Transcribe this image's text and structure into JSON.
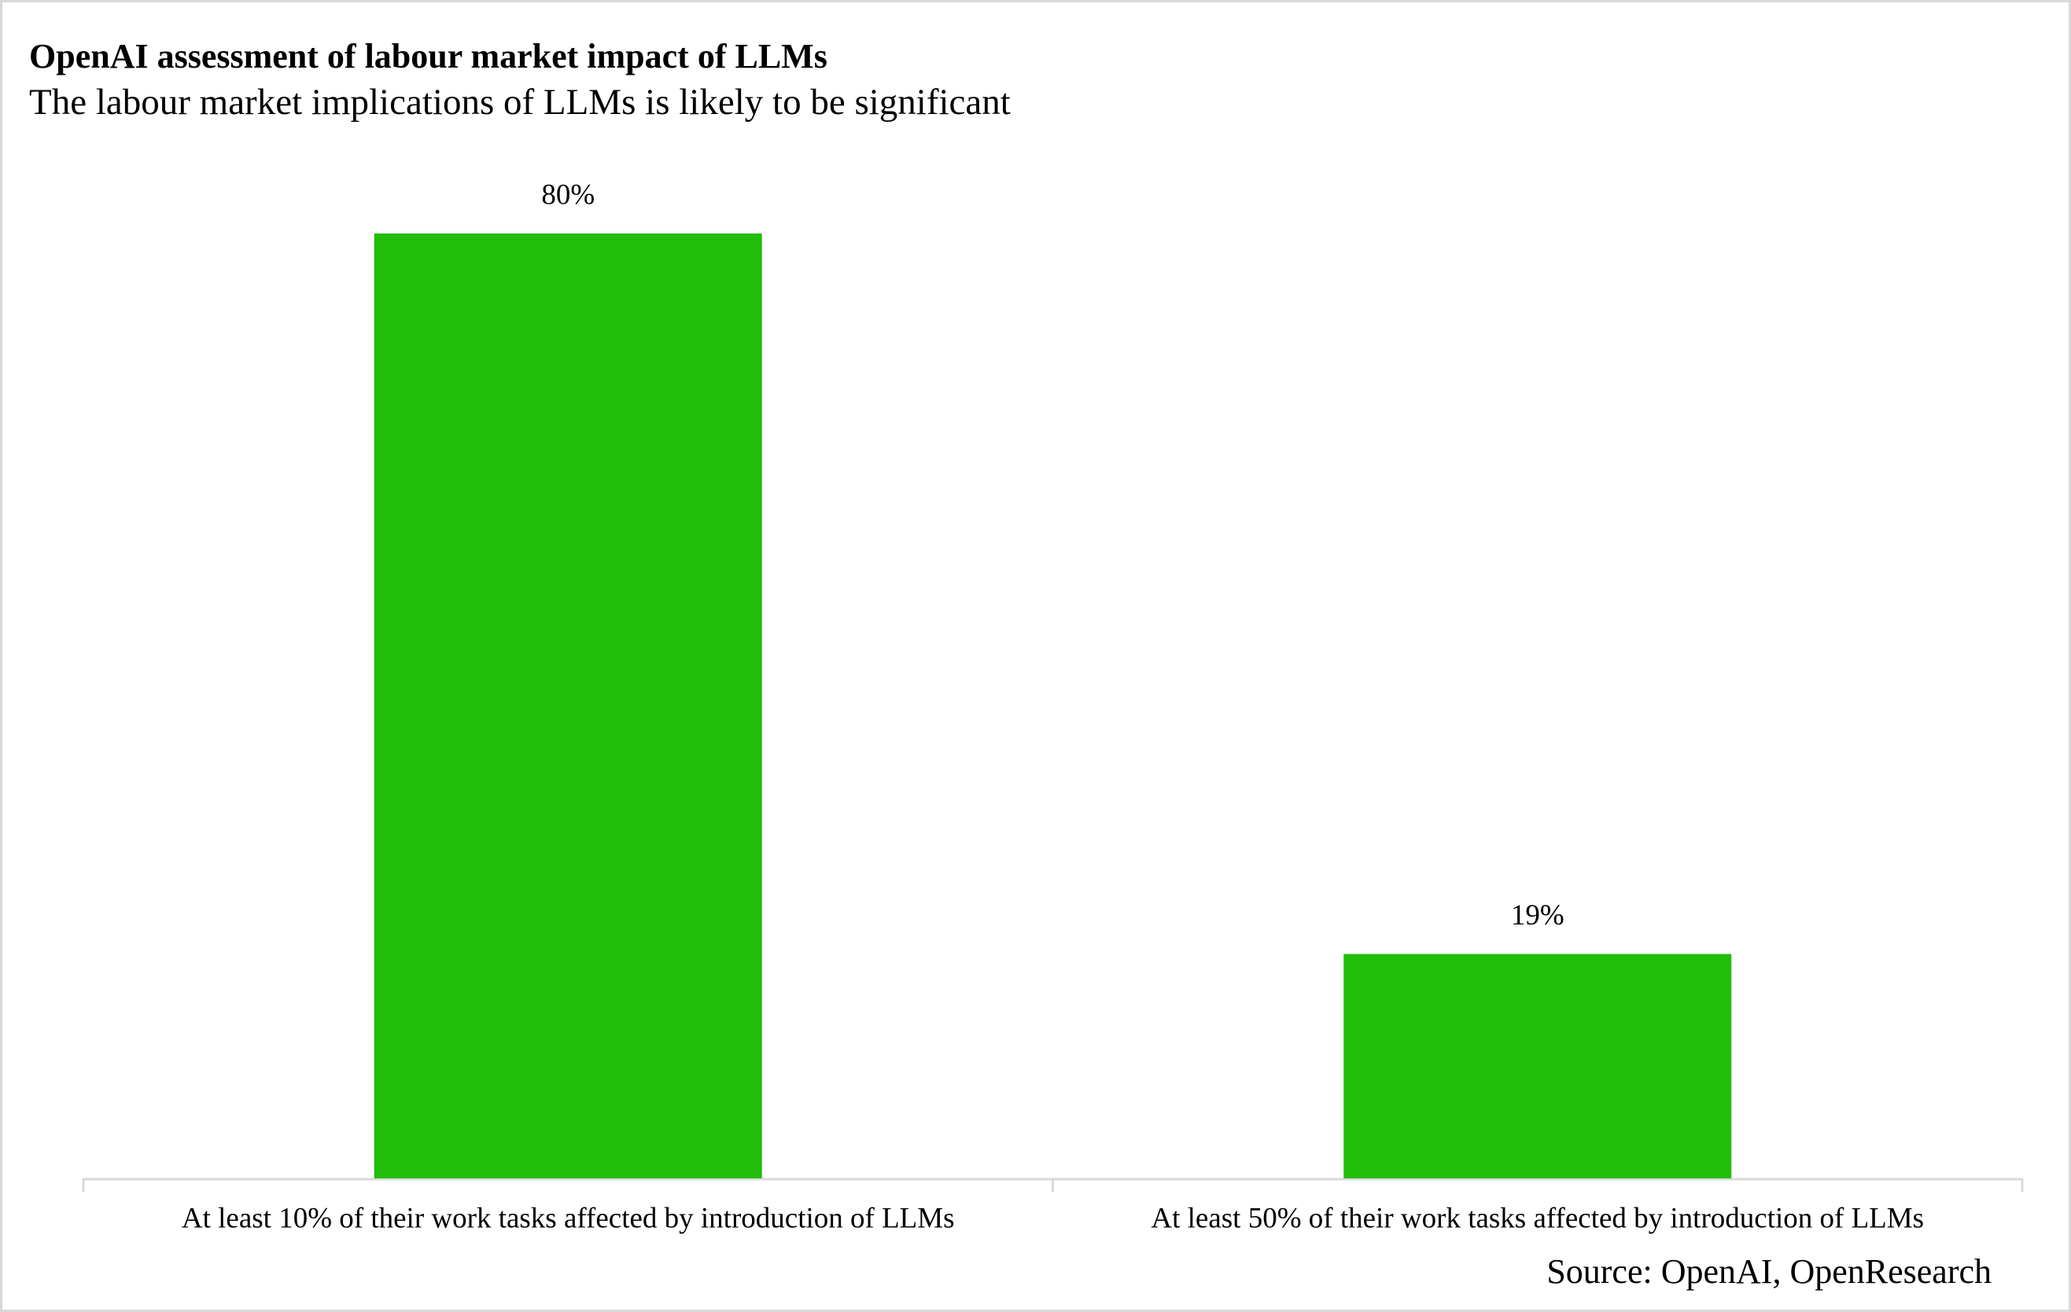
{
  "chart_data": {
    "type": "bar",
    "title": "OpenAI assessment of labour market impact of LLMs",
    "subtitle": "The labour market implications of LLMs is likely to be significant",
    "categories": [
      "At least 10% of their work tasks affected by introduction of LLMs",
      "At least 50% of their work tasks affected by introduction of LLMs"
    ],
    "values": [
      80,
      19
    ],
    "value_labels": [
      "80%",
      "19%"
    ],
    "color": "#22bd0a",
    "source": "Source: OpenAI, OpenResearch"
  }
}
